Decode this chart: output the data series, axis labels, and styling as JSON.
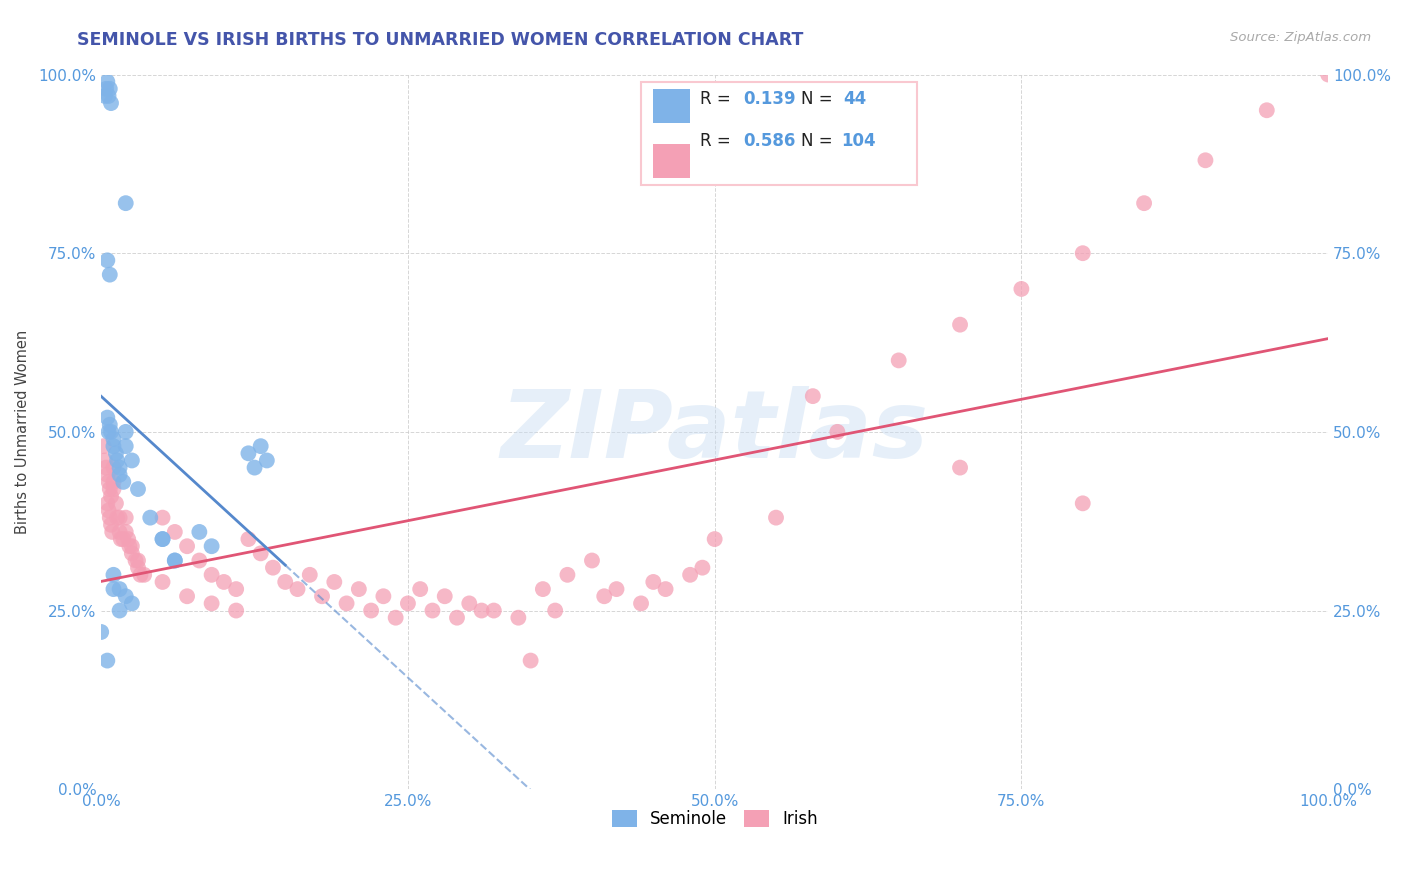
{
  "title": "SEMINOLE VS IRISH BIRTHS TO UNMARRIED WOMEN CORRELATION CHART",
  "source": "Source: ZipAtlas.com",
  "ylabel": "Births to Unmarried Women",
  "watermark_text": "ZIPatlas",
  "legend_R_seminole": "0.139",
  "legend_N_seminole": "44",
  "legend_R_irish": "0.586",
  "legend_N_irish": "104",
  "seminole_color": "#7fb3e8",
  "irish_color": "#f4a0b5",
  "trend_seminole_color": "#5588cc",
  "trend_irish_color": "#e05575",
  "background_color": "#ffffff",
  "grid_color": "#cccccc",
  "title_color": "#4455aa",
  "axis_label_color": "#5599dd",
  "source_color": "#aaaaaa",
  "ylabel_color": "#444444",
  "xlim": [
    0.0,
    1.0
  ],
  "ylim": [
    0.0,
    1.0
  ],
  "xtick_labels": [
    "0.0%",
    "25.0%",
    "50.0%",
    "75.0%",
    "100.0%"
  ],
  "ytick_labels": [
    "0.0%",
    "25.0%",
    "50.0%",
    "75.0%",
    "100.0%"
  ],
  "legend_box_color": "#f9c8d0"
}
